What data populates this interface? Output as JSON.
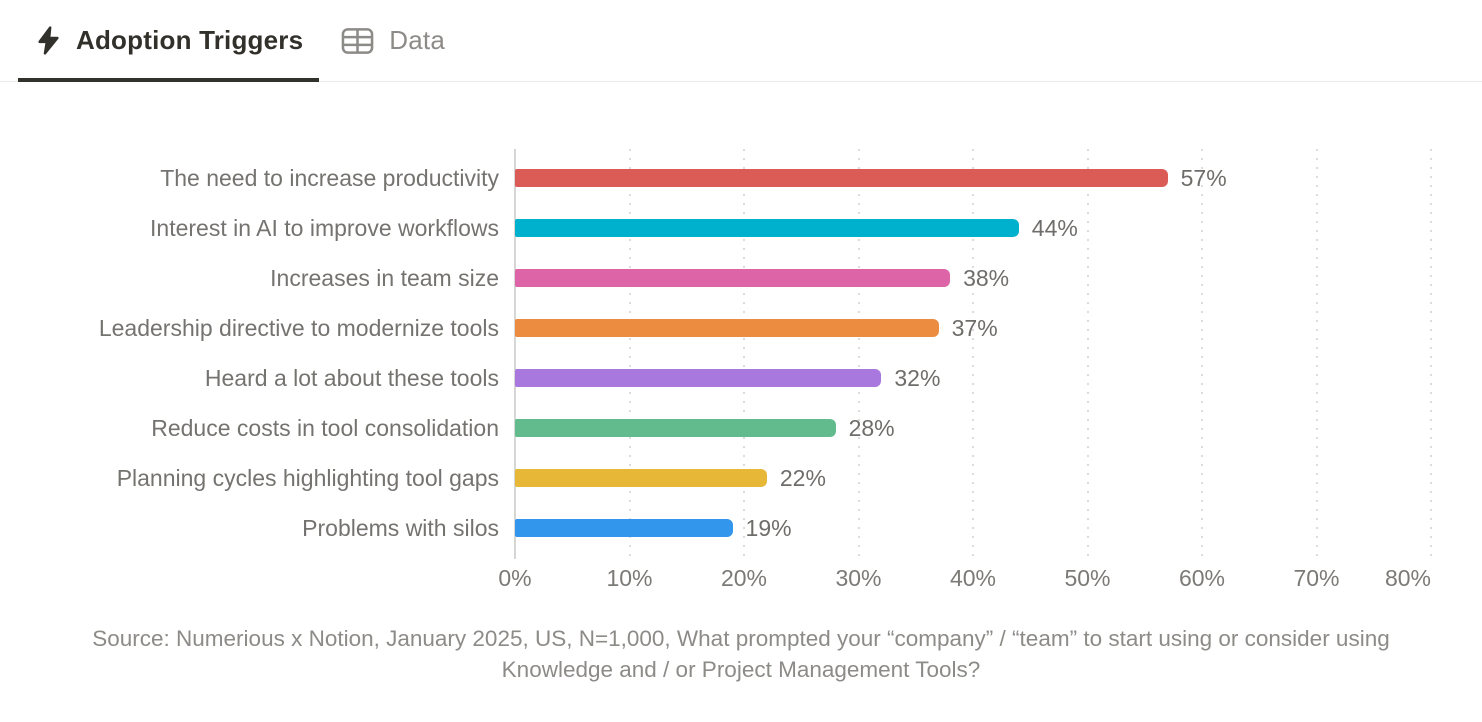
{
  "tabs": {
    "adoption_triggers": {
      "label": "Adoption Triggers",
      "icon": "lightning-bolt",
      "active": true
    },
    "data": {
      "label": "Data",
      "icon": "table",
      "active": false
    }
  },
  "chart_data": {
    "type": "bar",
    "orientation": "horizontal",
    "title": "",
    "categories": [
      "The need to increase productivity",
      "Interest in AI to improve workflows",
      "Increases in team size",
      "Leadership directive to modernize tools",
      "Heard a lot about these tools",
      "Reduce costs in tool consolidation",
      "Planning cycles highlighting tool gaps",
      "Problems with silos"
    ],
    "values": [
      57,
      44,
      38,
      37,
      32,
      28,
      22,
      19
    ],
    "value_labels": [
      "57%",
      "44%",
      "38%",
      "37%",
      "32%",
      "28%",
      "22%",
      "19%"
    ],
    "bar_colors": [
      "#db5b57",
      "#00b1cd",
      "#dc64a7",
      "#ec8c41",
      "#a878de",
      "#62bb8d",
      "#e7b837",
      "#3296ec"
    ],
    "x_ticks": [
      "0%",
      "10%",
      "20%",
      "30%",
      "40%",
      "50%",
      "60%",
      "70%",
      "80%"
    ],
    "xlim": [
      0,
      80
    ],
    "grid": "dotted vertical gridlines every 10%",
    "legend": "none",
    "label_color": "#757370"
  },
  "source": {
    "text": "Source: Numerious x Notion, January 2025, US, N=1,000, What prompted your “company” / “team” to start using or consider using Knowledge and / or Project Management Tools?"
  }
}
